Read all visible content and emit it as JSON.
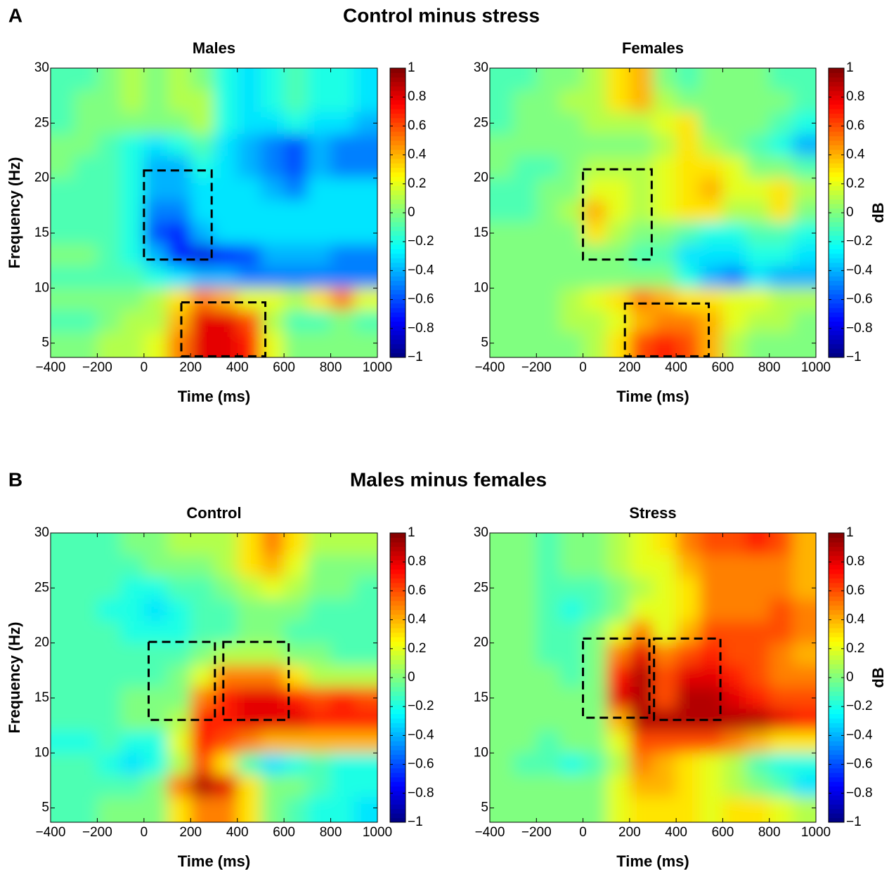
{
  "figure": {
    "sections": [
      {
        "letter": "A",
        "title": "Control minus stress"
      },
      {
        "letter": "B",
        "title": "Males minus females"
      }
    ]
  },
  "chart_data": [
    {
      "type": "heatmap",
      "title": "Males",
      "xlabel": "Time (ms)",
      "ylabel": "Frequency (Hz)",
      "colormap": "jet",
      "x": [
        -350,
        -250,
        -150,
        -50,
        50,
        150,
        250,
        350,
        450,
        550,
        650,
        750,
        850,
        950
      ],
      "y": [
        29,
        27,
        25,
        23,
        21,
        19,
        17,
        15,
        13,
        11,
        9,
        7,
        5
      ],
      "values": [
        [
          -0.1,
          -0.1,
          0,
          0.1,
          0,
          0.1,
          0,
          -0.2,
          -0.3,
          -0.2,
          -0.1,
          -0.2,
          -0.2,
          -0.3
        ],
        [
          -0.1,
          0,
          0,
          0.1,
          0,
          0.1,
          0.1,
          -0.2,
          -0.3,
          -0.2,
          -0.1,
          -0.2,
          -0.2,
          -0.3
        ],
        [
          -0.1,
          0,
          0,
          0,
          0,
          0,
          0.1,
          -0.2,
          -0.3,
          -0.3,
          -0.2,
          -0.3,
          -0.3,
          -0.4
        ],
        [
          0,
          0,
          -0.1,
          -0.2,
          -0.3,
          -0.2,
          -0.1,
          -0.3,
          -0.4,
          -0.5,
          -0.6,
          -0.4,
          -0.5,
          -0.5
        ],
        [
          0,
          -0.1,
          -0.1,
          -0.2,
          -0.4,
          -0.4,
          -0.2,
          -0.3,
          -0.4,
          -0.5,
          -0.6,
          -0.4,
          -0.5,
          -0.5
        ],
        [
          -0.1,
          -0.1,
          -0.1,
          -0.2,
          -0.4,
          -0.4,
          -0.3,
          -0.3,
          -0.3,
          -0.4,
          -0.5,
          -0.3,
          -0.3,
          -0.3
        ],
        [
          -0.1,
          -0.1,
          -0.1,
          -0.2,
          -0.5,
          -0.5,
          -0.3,
          -0.3,
          -0.3,
          -0.3,
          -0.3,
          -0.3,
          -0.3,
          -0.3
        ],
        [
          -0.1,
          -0.1,
          -0.1,
          -0.2,
          -0.6,
          -0.7,
          -0.4,
          -0.3,
          -0.3,
          -0.3,
          -0.3,
          -0.3,
          -0.3,
          -0.3
        ],
        [
          0,
          0,
          -0.1,
          -0.2,
          -0.4,
          -0.7,
          -0.8,
          -0.7,
          -0.6,
          -0.4,
          -0.4,
          -0.4,
          -0.5,
          -0.5
        ],
        [
          -0.1,
          -0.1,
          -0.1,
          -0.1,
          -0.2,
          -0.3,
          -0.4,
          -0.4,
          -0.5,
          -0.5,
          -0.5,
          -0.5,
          -0.5,
          -0.5
        ],
        [
          0,
          0,
          0,
          0,
          0.1,
          0.3,
          0.5,
          0.4,
          0.2,
          0.2,
          0.1,
          0.3,
          0.5,
          0.2
        ],
        [
          -0.1,
          -0.1,
          0,
          0.1,
          0.1,
          0.4,
          0.8,
          0.8,
          0.6,
          0.1,
          -0.1,
          -0.1,
          0,
          -0.1
        ],
        [
          0,
          0,
          0.1,
          0.1,
          0.2,
          0.5,
          0.8,
          0.8,
          0.7,
          0.2,
          0,
          0,
          0,
          0
        ]
      ],
      "boxes": [
        {
          "x": [
            0,
            290
          ],
          "y": [
            12.6,
            20.7
          ]
        },
        {
          "x": [
            160,
            520
          ],
          "y": [
            3.8,
            8.7
          ]
        }
      ],
      "xlim": [
        -400,
        1000
      ],
      "ylim": [
        3.7,
        30
      ],
      "xticks": [
        {
          "value": -400,
          "label": "−400"
        },
        {
          "value": -200,
          "label": "−200"
        },
        0,
        200,
        400,
        600,
        800,
        1000
      ],
      "yticks": [
        5,
        10,
        15,
        20,
        25,
        30
      ],
      "clim": [
        -1,
        1
      ],
      "cticks": [
        {
          "value": -1,
          "label": "−1"
        },
        {
          "value": -0.8,
          "label": "−0.8"
        },
        {
          "value": -0.6,
          "label": "−0.6"
        },
        {
          "value": -0.4,
          "label": "−0.4"
        },
        {
          "value": -0.2,
          "label": "−0.2"
        },
        0,
        0.2,
        0.4,
        0.6,
        0.8,
        1
      ]
    },
    {
      "type": "heatmap",
      "title": "Females",
      "xlabel": "Time (ms)",
      "colorbar_label": "dB",
      "colormap": "jet",
      "x": [
        -350,
        -250,
        -150,
        -50,
        50,
        150,
        250,
        350,
        450,
        550,
        650,
        750,
        850,
        950
      ],
      "y": [
        29,
        27,
        25,
        23,
        21,
        19,
        17,
        15,
        13,
        11,
        9,
        7,
        5
      ],
      "values": [
        [
          -0.1,
          -0.1,
          0,
          0,
          0.1,
          0.3,
          0.4,
          0,
          -0.1,
          0,
          0,
          0,
          -0.1,
          -0.1
        ],
        [
          -0.1,
          0,
          0,
          0.1,
          0.1,
          0.3,
          0.4,
          0.1,
          0,
          0,
          0,
          0,
          0,
          -0.1
        ],
        [
          -0.1,
          0,
          0,
          0,
          0.1,
          0.1,
          0.1,
          0.2,
          0.3,
          0,
          0,
          0,
          -0.1,
          -0.2
        ],
        [
          0,
          0,
          0,
          0,
          0,
          0,
          0,
          0.1,
          0.3,
          0.1,
          0,
          -0.1,
          -0.2,
          -0.4
        ],
        [
          0,
          -0.1,
          -0.1,
          0,
          0.1,
          0.1,
          0.1,
          0.2,
          0.3,
          0.3,
          0.2,
          0,
          0,
          -0.1
        ],
        [
          -0.1,
          -0.1,
          0,
          0,
          0.2,
          0.2,
          0.1,
          0.2,
          0.3,
          0.4,
          0.2,
          0.2,
          0.3,
          0.1
        ],
        [
          -0.1,
          -0.1,
          0,
          0.1,
          0.4,
          0.2,
          0.1,
          0.2,
          0.3,
          0.3,
          0.1,
          0.1,
          0.3,
          0
        ],
        [
          0,
          0,
          0,
          0,
          0.3,
          0.1,
          0,
          0,
          -0.1,
          -0.2,
          -0.2,
          -0.1,
          -0.1,
          -0.2
        ],
        [
          0,
          0,
          0,
          0,
          0,
          0,
          -0.1,
          -0.1,
          -0.3,
          -0.3,
          -0.3,
          -0.2,
          -0.2,
          -0.3
        ],
        [
          0,
          0,
          0,
          0,
          0,
          0,
          0,
          0,
          -0.2,
          -0.4,
          -0.5,
          -0.3,
          -0.4,
          -0.4
        ],
        [
          0,
          0,
          0,
          0.1,
          0.2,
          0.3,
          0.5,
          0.4,
          0.3,
          0.3,
          0.2,
          0.2,
          0.1,
          0.1
        ],
        [
          0,
          0,
          0,
          0.1,
          0.1,
          0.2,
          0.4,
          0.5,
          0.5,
          0.4,
          0.2,
          0.1,
          0.1,
          0
        ],
        [
          0,
          0,
          0,
          0,
          0.1,
          0.3,
          0.6,
          0.7,
          0.6,
          0.4,
          0.1,
          0,
          0,
          0
        ]
      ],
      "boxes": [
        {
          "x": [
            0,
            295
          ],
          "y": [
            12.6,
            20.8
          ]
        },
        {
          "x": [
            180,
            540
          ],
          "y": [
            3.8,
            8.6
          ]
        }
      ],
      "xlim": [
        -400,
        1000
      ],
      "ylim": [
        3.7,
        30
      ],
      "xticks": [
        {
          "value": -400,
          "label": "−400"
        },
        {
          "value": -200,
          "label": "−200"
        },
        0,
        200,
        400,
        600,
        800,
        1000
      ],
      "yticks": [
        5,
        10,
        15,
        20,
        25,
        30
      ],
      "clim": [
        -1,
        1
      ],
      "cticks": [
        {
          "value": -1,
          "label": "−1"
        },
        {
          "value": -0.8,
          "label": "−0.8"
        },
        {
          "value": -0.6,
          "label": "−0.6"
        },
        {
          "value": -0.4,
          "label": "−0.4"
        },
        {
          "value": -0.2,
          "label": "−0.2"
        },
        0,
        0.2,
        0.4,
        0.6,
        0.8,
        1
      ]
    },
    {
      "type": "heatmap",
      "title": "Control",
      "xlabel": "Time (ms)",
      "ylabel": "Frequency (Hz)",
      "colormap": "jet",
      "x": [
        -350,
        -250,
        -150,
        -50,
        50,
        150,
        250,
        350,
        450,
        550,
        650,
        750,
        850,
        950
      ],
      "y": [
        29,
        27,
        25,
        23,
        21,
        19,
        17,
        15,
        13,
        11,
        9,
        7,
        5
      ],
      "values": [
        [
          -0.1,
          -0.1,
          -0.1,
          0,
          0,
          0.1,
          0.1,
          0.1,
          0.3,
          0.5,
          0.3,
          0.1,
          0.1,
          0.1
        ],
        [
          -0.1,
          -0.1,
          -0.1,
          -0.1,
          0,
          0,
          0,
          0.1,
          0.3,
          0.4,
          0.2,
          0,
          0,
          0
        ],
        [
          -0.1,
          -0.1,
          -0.1,
          -0.2,
          -0.2,
          -0.1,
          -0.1,
          0,
          0.1,
          0.2,
          0.1,
          0,
          0,
          -0.1
        ],
        [
          -0.1,
          -0.1,
          -0.2,
          -0.2,
          -0.3,
          -0.2,
          -0.1,
          -0.1,
          0,
          0,
          0,
          -0.1,
          -0.1,
          -0.1
        ],
        [
          -0.1,
          -0.1,
          -0.1,
          -0.2,
          -0.2,
          -0.2,
          -0.1,
          -0.1,
          0,
          0,
          -0.1,
          -0.1,
          -0.1,
          -0.1
        ],
        [
          -0.1,
          -0.1,
          -0.1,
          -0.1,
          -0.1,
          -0.1,
          0,
          0.1,
          0.1,
          0.1,
          0,
          0,
          -0.1,
          -0.1
        ],
        [
          -0.1,
          -0.1,
          -0.1,
          -0.1,
          -0.1,
          0,
          0.2,
          0.5,
          0.5,
          0.5,
          0.3,
          0.1,
          0.1,
          0.1
        ],
        [
          -0.1,
          -0.1,
          -0.1,
          0,
          0,
          0,
          0.5,
          0.7,
          0.8,
          0.8,
          0.7,
          0.6,
          0.7,
          0.6
        ],
        [
          -0.1,
          -0.1,
          -0.1,
          0,
          0,
          0.1,
          0.7,
          0.7,
          0.8,
          0.8,
          0.8,
          0.7,
          0.7,
          0.7
        ],
        [
          -0.2,
          -0.2,
          -0.1,
          -0.2,
          -0.2,
          0.2,
          0.7,
          0.6,
          0.5,
          0.4,
          0.4,
          0.4,
          0.4,
          0.4
        ],
        [
          -0.1,
          -0.1,
          -0.2,
          -0.3,
          -0.2,
          0.1,
          0.6,
          0.3,
          -0.1,
          -0.3,
          -0.2,
          -0.1,
          -0.2,
          -0.2
        ],
        [
          -0.1,
          -0.1,
          -0.1,
          -0.1,
          0,
          0.5,
          0.9,
          0.8,
          0.3,
          0,
          0,
          -0.1,
          -0.2,
          -0.2
        ],
        [
          -0.1,
          -0.1,
          0,
          0,
          0,
          0.3,
          0.5,
          0.5,
          0.3,
          0,
          -0.1,
          -0.2,
          -0.2,
          -0.3
        ]
      ],
      "boxes": [
        {
          "x": [
            20,
            304
          ],
          "y": [
            13,
            20.1
          ]
        },
        {
          "x": [
            340,
            620
          ],
          "y": [
            13,
            20.1
          ]
        }
      ],
      "xlim": [
        -400,
        1000
      ],
      "ylim": [
        3.7,
        30
      ],
      "xticks": [
        {
          "value": -400,
          "label": "−400"
        },
        {
          "value": -200,
          "label": "−200"
        },
        0,
        200,
        400,
        600,
        800,
        1000
      ],
      "yticks": [
        5,
        10,
        15,
        20,
        25,
        30
      ],
      "clim": [
        -1,
        1
      ],
      "cticks": [
        {
          "value": -1,
          "label": "−1"
        },
        {
          "value": -0.8,
          "label": "−0.8"
        },
        {
          "value": -0.6,
          "label": "−0.6"
        },
        {
          "value": -0.4,
          "label": "−0.4"
        },
        {
          "value": -0.2,
          "label": "−0.2"
        },
        0,
        0.2,
        0.4,
        0.6,
        0.8,
        1
      ]
    },
    {
      "type": "heatmap",
      "title": "Stress",
      "xlabel": "Time (ms)",
      "colorbar_label": "dB",
      "colormap": "jet",
      "x": [
        -350,
        -250,
        -150,
        -50,
        50,
        150,
        250,
        350,
        450,
        550,
        650,
        750,
        850,
        950
      ],
      "y": [
        29,
        27,
        25,
        23,
        21,
        19,
        17,
        15,
        13,
        11,
        9,
        7,
        5
      ],
      "values": [
        [
          0,
          0,
          -0.1,
          0,
          0,
          0.1,
          0.2,
          0.3,
          0.5,
          0.6,
          0.6,
          0.7,
          0.6,
          0.4
        ],
        [
          0,
          0,
          -0.1,
          0,
          0,
          0.1,
          0.2,
          0.2,
          0.4,
          0.5,
          0.5,
          0.5,
          0.5,
          0.4
        ],
        [
          0,
          0,
          -0.1,
          -0.1,
          -0.1,
          0,
          0.1,
          0.2,
          0.3,
          0.5,
          0.5,
          0.5,
          0.5,
          0.4
        ],
        [
          0,
          0,
          -0.1,
          -0.2,
          -0.1,
          0,
          0.2,
          0.2,
          0.3,
          0.5,
          0.5,
          0.5,
          0.6,
          0.5
        ],
        [
          0,
          0,
          -0.1,
          -0.1,
          0,
          0.2,
          0.5,
          0.2,
          0.4,
          0.6,
          0.6,
          0.6,
          0.6,
          0.5
        ],
        [
          0,
          0,
          -0.1,
          -0.1,
          0,
          0.5,
          0.8,
          0.5,
          0.6,
          0.7,
          0.6,
          0.6,
          0.5,
          0.4
        ],
        [
          0,
          0,
          0,
          -0.1,
          0,
          0.7,
          0.9,
          0.6,
          0.8,
          0.8,
          0.7,
          0.6,
          0.5,
          0.5
        ],
        [
          0,
          0,
          0,
          0,
          0,
          0.8,
          0.9,
          0.6,
          0.9,
          0.9,
          0.8,
          0.7,
          0.6,
          0.6
        ],
        [
          0,
          0,
          0,
          0,
          0,
          0.4,
          0.9,
          0.9,
          0.9,
          0.9,
          0.9,
          0.9,
          0.8,
          0.7
        ],
        [
          0,
          0,
          -0.1,
          0,
          0,
          0.2,
          0.6,
          0.6,
          0.6,
          0.6,
          0.5,
          0.4,
          0.3,
          0.3
        ],
        [
          0,
          -0.1,
          -0.1,
          -0.2,
          -0.1,
          0.1,
          0.5,
          0.4,
          0.3,
          0.2,
          0.1,
          -0.1,
          -0.2,
          -0.2
        ],
        [
          0,
          0,
          0,
          0,
          0,
          0.2,
          0.4,
          0.4,
          0.3,
          0.2,
          0.1,
          0,
          -0.1,
          -0.3
        ],
        [
          0,
          0,
          0,
          0,
          0,
          0.2,
          0.3,
          0.3,
          0.3,
          0.2,
          0.3,
          0.3,
          0.2,
          0.1
        ]
      ],
      "boxes": [
        {
          "x": [
            0,
            285
          ],
          "y": [
            13.2,
            20.4
          ]
        },
        {
          "x": [
            305,
            590
          ],
          "y": [
            13,
            20.4
          ]
        }
      ],
      "xlim": [
        -400,
        1000
      ],
      "ylim": [
        3.7,
        30
      ],
      "xticks": [
        {
          "value": -400,
          "label": "−400"
        },
        {
          "value": -200,
          "label": "−200"
        },
        0,
        200,
        400,
        600,
        800,
        1000
      ],
      "yticks": [
        5,
        10,
        15,
        20,
        25,
        30
      ],
      "clim": [
        -1,
        1
      ],
      "cticks": [
        {
          "value": -1,
          "label": "−1"
        },
        {
          "value": -0.8,
          "label": "−0.8"
        },
        {
          "value": -0.6,
          "label": "−0.6"
        },
        {
          "value": -0.4,
          "label": "−0.4"
        },
        {
          "value": -0.2,
          "label": "−0.2"
        },
        0,
        0.2,
        0.4,
        0.6,
        0.8,
        1
      ]
    }
  ]
}
